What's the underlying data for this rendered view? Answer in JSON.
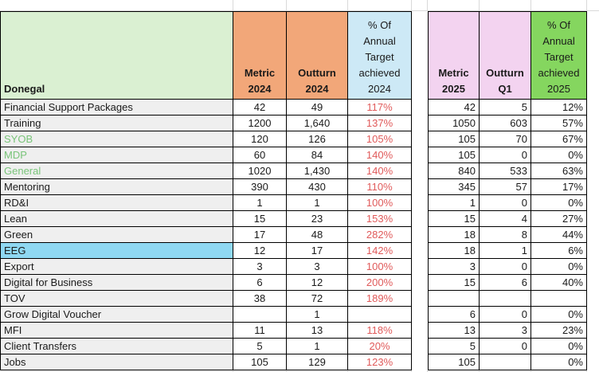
{
  "sheet": {
    "title_cell": "Donegal",
    "headers": {
      "metric_2024": "Metric\n2024",
      "outturn_2024": "Outturn\n2024",
      "pct_2024": "% Of\nAnnual\nTarget\nachieved\n2024",
      "metric_2025": "Metric\n2025",
      "outturn_q1": "Outturn\nQ1",
      "pct_2025": "% Of\nAnnual\nTarget\nachieved\n2025"
    },
    "colors": {
      "header_green": "#DAF0D2",
      "header_orange": "#F2A779",
      "header_blue": "#CDE9F6",
      "header_pink": "#F3D3F0",
      "header_bright_green": "#85D65F",
      "label_gray": "#EFEFEF",
      "label_blue": "#8FD8F2",
      "green_text": "#79C479",
      "red_text": "#E05A5A",
      "grid_light": "#D9D9D9",
      "border_dark": "#000000"
    },
    "rows": [
      {
        "label": "Financial Support Packages",
        "variant": "normal",
        "metric_2024": "42",
        "outturn_2024": "49",
        "pct_2024": "117%",
        "metric_2025": "42",
        "outturn_q1": "5",
        "pct_2025": "12%"
      },
      {
        "label": "Training",
        "variant": "normal",
        "metric_2024": "1200",
        "outturn_2024": "1,640",
        "pct_2024": "137%",
        "metric_2025": "1050",
        "outturn_q1": "603",
        "pct_2025": "57%"
      },
      {
        "label": "SYOB",
        "variant": "green",
        "metric_2024": "120",
        "outturn_2024": "126",
        "pct_2024": "105%",
        "metric_2025": "105",
        "outturn_q1": "70",
        "pct_2025": "67%"
      },
      {
        "label": "MDP",
        "variant": "green",
        "metric_2024": "60",
        "outturn_2024": "84",
        "pct_2024": "140%",
        "metric_2025": "105",
        "outturn_q1": "0",
        "pct_2025": "0%"
      },
      {
        "label": "General",
        "variant": "green",
        "metric_2024": "1020",
        "outturn_2024": "1,430",
        "pct_2024": "140%",
        "metric_2025": "840",
        "outturn_q1": "533",
        "pct_2025": "63%"
      },
      {
        "label": "Mentoring",
        "variant": "normal",
        "metric_2024": "390",
        "outturn_2024": "430",
        "pct_2024": "110%",
        "metric_2025": "345",
        "outturn_q1": "57",
        "pct_2025": "17%"
      },
      {
        "label": "RD&I",
        "variant": "normal",
        "metric_2024": "1",
        "outturn_2024": "1",
        "pct_2024": "100%",
        "metric_2025": "1",
        "outturn_q1": "0",
        "pct_2025": "0%"
      },
      {
        "label": "Lean",
        "variant": "normal",
        "metric_2024": "15",
        "outturn_2024": "23",
        "pct_2024": "153%",
        "metric_2025": "15",
        "outturn_q1": "4",
        "pct_2025": "27%"
      },
      {
        "label": "Green",
        "variant": "normal",
        "metric_2024": "17",
        "outturn_2024": "48",
        "pct_2024": "282%",
        "metric_2025": "18",
        "outturn_q1": "8",
        "pct_2025": "44%"
      },
      {
        "label": "EEG",
        "variant": "blue",
        "metric_2024": "12",
        "outturn_2024": "17",
        "pct_2024": "142%",
        "metric_2025": "18",
        "outturn_q1": "1",
        "pct_2025": "6%"
      },
      {
        "label": "Export",
        "variant": "normal",
        "metric_2024": "3",
        "outturn_2024": "3",
        "pct_2024": "100%",
        "metric_2025": "3",
        "outturn_q1": "0",
        "pct_2025": "0%"
      },
      {
        "label": "Digital for Business",
        "variant": "normal",
        "metric_2024": "6",
        "outturn_2024": "12",
        "pct_2024": "200%",
        "metric_2025": "15",
        "outturn_q1": "6",
        "pct_2025": "40%"
      },
      {
        "label": "TOV",
        "variant": "normal",
        "metric_2024": "38",
        "outturn_2024": "72",
        "pct_2024": "189%",
        "metric_2025": "",
        "outturn_q1": "",
        "pct_2025": ""
      },
      {
        "label": "Grow Digital Voucher",
        "variant": "normal",
        "metric_2024": "",
        "outturn_2024": "1",
        "pct_2024": "",
        "metric_2025": "6",
        "outturn_q1": "0",
        "pct_2025": "0%"
      },
      {
        "label": "MFI",
        "variant": "normal",
        "metric_2024": "11",
        "outturn_2024": "13",
        "pct_2024": "118%",
        "metric_2025": "13",
        "outturn_q1": "3",
        "pct_2025": "23%"
      },
      {
        "label": "Client Transfers",
        "variant": "normal",
        "metric_2024": "5",
        "outturn_2024": "1",
        "pct_2024": "20%",
        "metric_2025": "5",
        "outturn_q1": "0",
        "pct_2025": "0%"
      },
      {
        "label": "Jobs",
        "variant": "normal",
        "metric_2024": "105",
        "outturn_2024": "129",
        "pct_2024": "123%",
        "metric_2025": "105",
        "outturn_q1": "",
        "pct_2025": "0%"
      }
    ]
  }
}
